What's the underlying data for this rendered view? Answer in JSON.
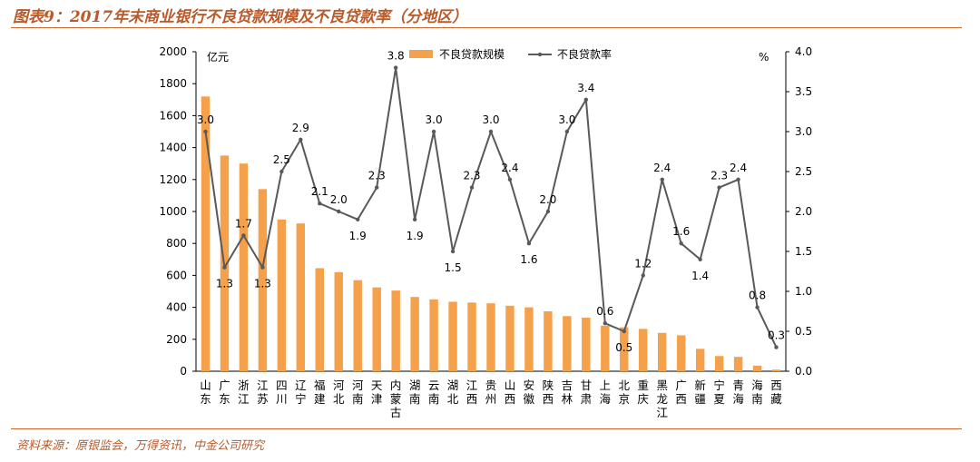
{
  "header": {
    "title": "图表9：2017年末商业银行不良贷款规模及不良贷款率（分地区）"
  },
  "footer": {
    "source": "资料来源：原银监会，万得资讯，中金公司研究"
  },
  "colors": {
    "bar": "#f5a04b",
    "line": "#595959",
    "rule": "#c8672e",
    "title": "#b85a2a"
  },
  "chart_data": {
    "type": "bar",
    "left_unit": "亿元",
    "right_unit": "%",
    "y_left_range": [
      0,
      2000
    ],
    "y_left_ticks": [
      "0",
      "200",
      "400",
      "600",
      "800",
      "1000",
      "1200",
      "1400",
      "1600",
      "1800",
      "2000"
    ],
    "y_right_range": [
      0,
      4.0
    ],
    "y_right_ticks": [
      "0.0",
      "0.5",
      "1.0",
      "1.5",
      "2.0",
      "2.5",
      "3.0",
      "3.5",
      "4.0"
    ],
    "legend": [
      "不良贷款规模",
      "不良贷款率"
    ],
    "legend_position": "top-center",
    "grid": false,
    "categories": [
      "山东",
      "广东",
      "浙江",
      "江苏",
      "四川",
      "辽宁",
      "福建",
      "河北",
      "河南",
      "天津",
      "内蒙古",
      "湖南",
      "云南",
      "湖北",
      "江西",
      "贵州",
      "山西",
      "安徽",
      "陕西",
      "吉林",
      "甘肃",
      "上海",
      "北京",
      "重庆",
      "黑龙江",
      "广西",
      "新疆",
      "宁夏",
      "青海",
      "海南",
      "西藏"
    ],
    "series": [
      {
        "name": "不良贷款规模",
        "type": "bar",
        "values": [
          1720,
          1350,
          1300,
          1140,
          950,
          925,
          645,
          620,
          570,
          525,
          505,
          465,
          450,
          435,
          430,
          425,
          410,
          400,
          375,
          345,
          335,
          285,
          275,
          265,
          240,
          225,
          140,
          95,
          90,
          35,
          10
        ]
      },
      {
        "name": "不良贷款率",
        "type": "line",
        "values": [
          3.0,
          1.3,
          1.7,
          1.3,
          2.5,
          2.9,
          2.1,
          2.0,
          1.9,
          2.3,
          3.8,
          1.9,
          3.0,
          1.5,
          2.3,
          3.0,
          2.4,
          1.6,
          2.0,
          3.0,
          3.4,
          0.6,
          0.5,
          1.2,
          2.4,
          1.6,
          1.4,
          2.3,
          2.4,
          0.8,
          0.3
        ],
        "labels": [
          "3.0",
          "1.3",
          "1.7",
          "1.3",
          "2.5",
          "2.9",
          "2.1",
          "2.0",
          "1.9",
          "2.3",
          "3.8",
          "1.9",
          "3.0",
          "1.5",
          "2.3",
          "3.0",
          "2.4",
          "1.6",
          "2.0",
          "3.0",
          "3.4",
          "0.6",
          "0.5",
          "1.2",
          "2.4",
          "1.6",
          "1.4",
          "2.3",
          "2.4",
          "0.8",
          "0.3"
        ]
      }
    ]
  }
}
